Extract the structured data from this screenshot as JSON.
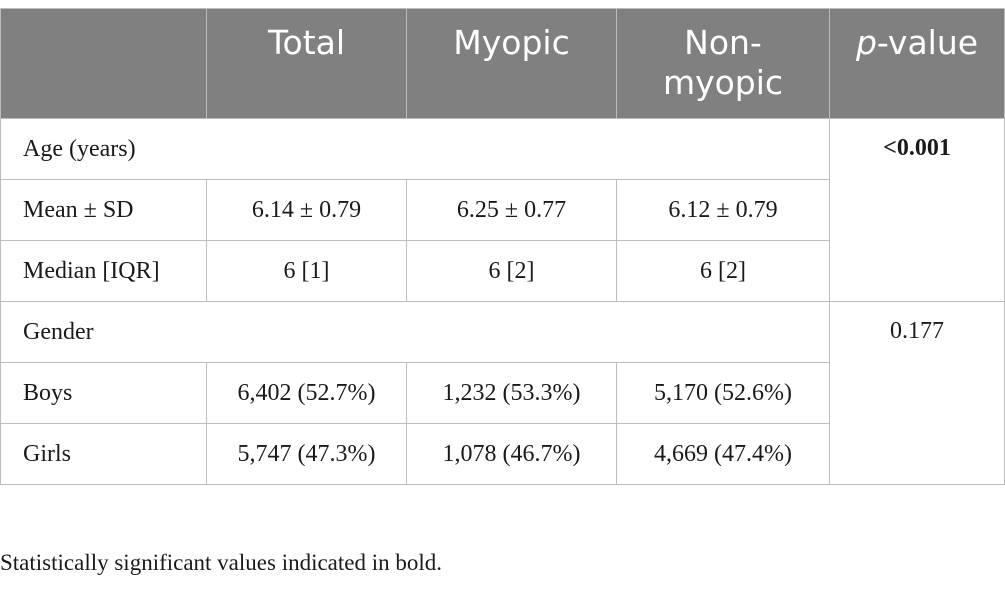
{
  "table": {
    "header": {
      "blank": "",
      "total": "Total",
      "myopic": "Myopic",
      "non_myopic": "Non-myopic",
      "p_prefix": "p",
      "p_suffix": "-value"
    },
    "age": {
      "label": "Age (years)",
      "p_value": "<0.001",
      "mean": {
        "label": "Mean ± SD",
        "total": "6.14 ± 0.79",
        "myopic": "6.25 ± 0.77",
        "non_myopic": "6.12 ± 0.79"
      },
      "median": {
        "label": "Median [IQR]",
        "total": "6 [1]",
        "myopic": "6 [2]",
        "non_myopic": "6 [2]"
      }
    },
    "gender": {
      "label": "Gender",
      "p_value": "0.177",
      "boys": {
        "label": "Boys",
        "total": "6,402 (52.7%)",
        "myopic": "1,232 (53.3%)",
        "non_myopic": "5,170 (52.6%)"
      },
      "girls": {
        "label": "Girls",
        "total": "5,747 (47.3%)",
        "myopic": "1,078 (46.7%)",
        "non_myopic": "4,669 (47.4%)"
      }
    }
  },
  "footnote": "Statistically significant values indicated in bold."
}
